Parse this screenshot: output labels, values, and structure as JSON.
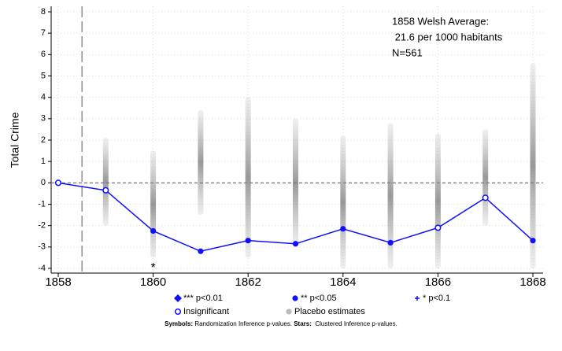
{
  "chart_data": {
    "type": "line",
    "y_label": "Total Crime",
    "x": [
      1858,
      1859,
      1860,
      1861,
      1862,
      1863,
      1864,
      1865,
      1866,
      1867,
      1868
    ],
    "series": [
      {
        "color": "#1010ff",
        "values": [
          0,
          -0.35,
          -2.25,
          -3.2,
          -2.7,
          -2.85,
          -2.15,
          -2.8,
          -2.1,
          -0.7,
          -2.7
        ],
        "markers": [
          3,
          3,
          1,
          1,
          1,
          1,
          1,
          1,
          3,
          3,
          1
        ]
      }
    ],
    "xlim": [
      1858,
      1868
    ],
    "ylim": [
      -4,
      8
    ],
    "xticks": [
      1858,
      1860,
      1862,
      1864,
      1866,
      1868
    ],
    "yticks": [
      -4,
      -3,
      -2,
      -1,
      0,
      1,
      2,
      3,
      4,
      5,
      6,
      7,
      8
    ],
    "grid": true,
    "reference_lines": {
      "x": 1858.5,
      "y": 0
    },
    "placebo": {
      "color": "#9a9a9a",
      "x": [
        1859,
        1860,
        1861,
        1862,
        1863,
        1864,
        1865,
        1866,
        1867,
        1868
      ],
      "low": [
        -2,
        -3.5,
        -1.5,
        -3.5,
        -3,
        -4,
        -4,
        -4,
        -2,
        -4
      ],
      "high": [
        2.1,
        1.5,
        3.4,
        4,
        3,
        2.2,
        2.8,
        2.3,
        2.5,
        5.6
      ]
    },
    "annotations": [
      {
        "text": "*",
        "x": 1860,
        "y": -3.85
      }
    ],
    "text_box": [
      "1858 Welsh Average:",
      " 21.6 per 1000 habitants",
      "N=561"
    ],
    "legend": [
      {
        "marker": "diamond",
        "color": "#1010ff",
        "label": "*** p<0.01"
      },
      {
        "marker": "circle",
        "color": "#1010ff",
        "label": "** p<0.05"
      },
      {
        "marker": "plus",
        "color": "#1010ff",
        "label": "* p<0.1"
      },
      {
        "marker": "hollow",
        "color": "#1010ff",
        "label": "Insignificant"
      },
      {
        "marker": "circle",
        "color": "#bbbbbb",
        "label": "Placebo estimates"
      }
    ],
    "note": [
      {
        "text": "Symbols:",
        "bold": true
      },
      {
        "text": " Randomization Inference p-values. ",
        "bold": false
      },
      {
        "text": "Stars:",
        "bold": true
      },
      {
        "text": "  Clustered Inference p-values.",
        "bold": false
      }
    ]
  }
}
